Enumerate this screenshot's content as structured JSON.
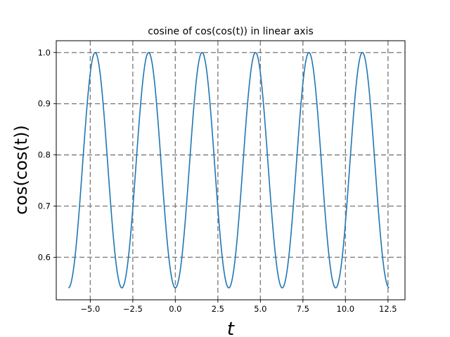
{
  "chart_data": {
    "type": "line",
    "title": "cosine of cos(cos(t)) in linear axis",
    "xlabel": "t",
    "ylabel": "cos(cos(t))",
    "xlim": [
      -7.0,
      13.5
    ],
    "ylim": [
      0.517,
      1.023
    ],
    "xticks": [
      -5.0,
      -2.5,
      0.0,
      2.5,
      5.0,
      7.5,
      10.0,
      12.5
    ],
    "xtick_labels": [
      "−5.0",
      "−2.5",
      "0.0",
      "2.5",
      "5.0",
      "7.5",
      "10.0",
      "12.5"
    ],
    "yticks": [
      0.6,
      0.7,
      0.8,
      0.9,
      1.0
    ],
    "ytick_labels": [
      "0.6",
      "0.7",
      "0.8",
      "0.9",
      "1.0"
    ],
    "grid": true,
    "grid_style": "dashed",
    "grid_color": "#808080",
    "series": [
      {
        "color": "#1f77b4",
        "function": "cos(cos(t))",
        "x_range": [
          -6.283,
          12.566
        ],
        "points": 600
      }
    ]
  }
}
